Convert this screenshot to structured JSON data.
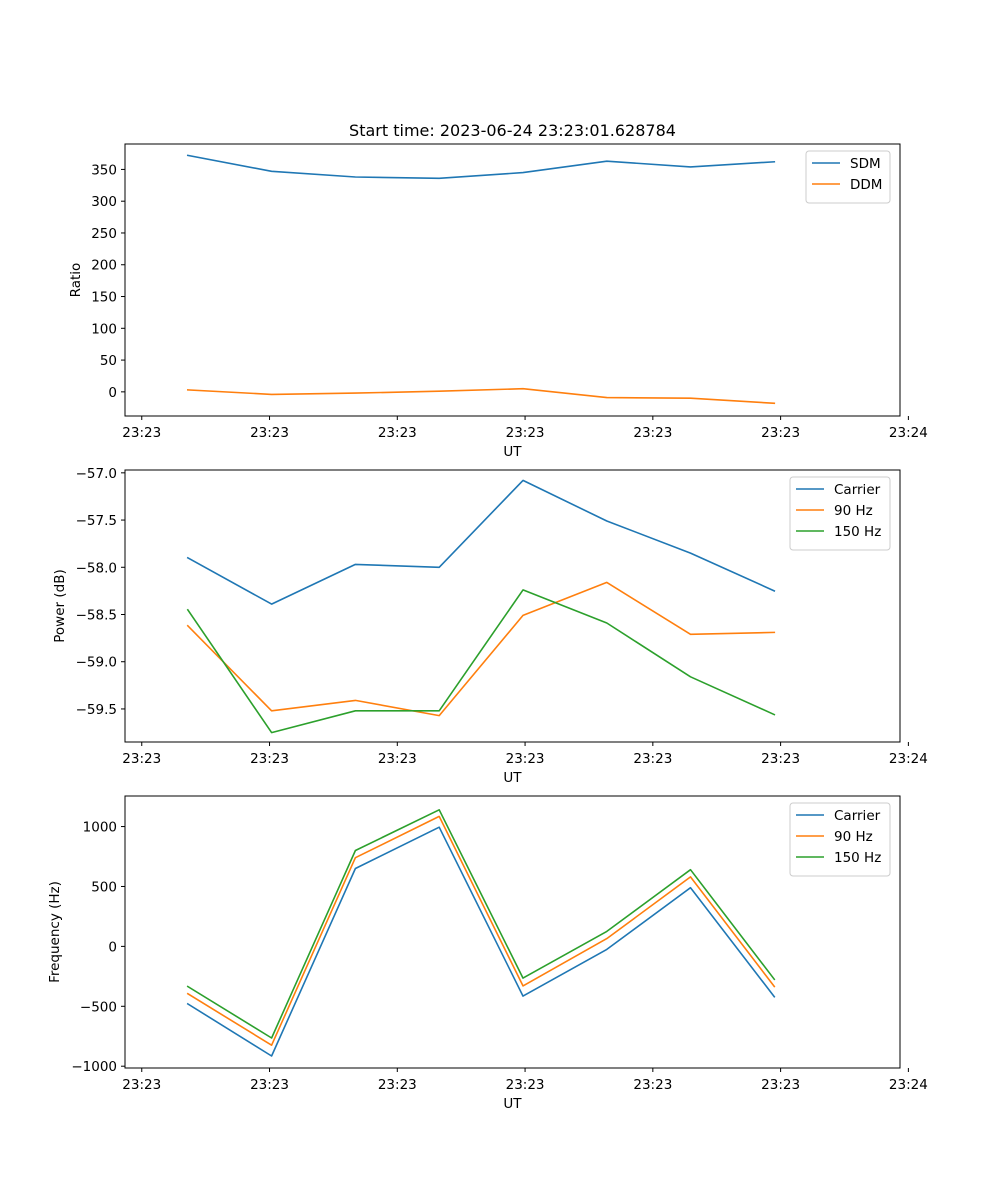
{
  "figure": {
    "title": "Start time: 2023-06-24 23:23:01.628784"
  },
  "chart_data": [
    {
      "type": "line",
      "title": "Start time: 2023-06-24 23:23:01.628784",
      "xlabel": "UT",
      "ylabel": "Ratio",
      "x": [
        1,
        2,
        3,
        4,
        5,
        6,
        7,
        8
      ],
      "xlim": [
        0.25,
        9.5
      ],
      "xticks": [
        0.45,
        1.975,
        3.5,
        5.025,
        6.55,
        8.075,
        9.6
      ],
      "xtick_labels": [
        "23:23",
        "23:23",
        "23:23",
        "23:23",
        "23:23",
        "23:23",
        "23:24"
      ],
      "ylim": [
        -38,
        390
      ],
      "yticks": [
        0,
        50,
        100,
        150,
        200,
        250,
        300,
        350
      ],
      "ytick_labels": [
        "0",
        "50",
        "100",
        "150",
        "200",
        "250",
        "300",
        "350"
      ],
      "legend_position": "top-right",
      "series": [
        {
          "name": "SDM",
          "color": "#1f77b4",
          "values": [
            372,
            347,
            338,
            336,
            345,
            363,
            354,
            362
          ]
        },
        {
          "name": "DDM",
          "color": "#ff7f0e",
          "values": [
            3,
            -4,
            -2,
            1,
            5,
            -9,
            -10,
            -18
          ]
        }
      ]
    },
    {
      "type": "line",
      "title": "",
      "xlabel": "UT",
      "ylabel": "Power (dB)",
      "x": [
        1,
        2,
        3,
        4,
        5,
        6,
        7,
        8
      ],
      "xlim": [
        0.25,
        9.5
      ],
      "xticks": [
        0.45,
        1.975,
        3.5,
        5.025,
        6.55,
        8.075,
        9.6
      ],
      "xtick_labels": [
        "23:23",
        "23:23",
        "23:23",
        "23:23",
        "23:23",
        "23:23",
        "23:24"
      ],
      "ylim": [
        -59.85,
        -56.97
      ],
      "yticks": [
        -59.5,
        -59.0,
        -58.5,
        -58.0,
        -57.5,
        -57.0
      ],
      "ytick_labels": [
        "−59.5",
        "−59.0",
        "−58.5",
        "−58.0",
        "−57.5",
        "−57.0"
      ],
      "legend_position": "top-right",
      "series": [
        {
          "name": "Carrier",
          "color": "#1f77b4",
          "values": [
            -57.9,
            -58.39,
            -57.97,
            -58.0,
            -57.08,
            -57.51,
            -57.85,
            -58.25
          ]
        },
        {
          "name": "90 Hz",
          "color": "#ff7f0e",
          "values": [
            -58.62,
            -59.52,
            -59.41,
            -59.57,
            -58.51,
            -58.16,
            -58.71,
            -58.69
          ]
        },
        {
          "name": "150 Hz",
          "color": "#2ca02c",
          "values": [
            -58.45,
            -59.75,
            -59.52,
            -59.52,
            -58.24,
            -58.59,
            -59.16,
            -59.56
          ]
        }
      ]
    },
    {
      "type": "line",
      "title": "",
      "xlabel": "UT",
      "ylabel": "Frequency (Hz)",
      "x": [
        1,
        2,
        3,
        4,
        5,
        6,
        7,
        8
      ],
      "xlim": [
        0.25,
        9.5
      ],
      "xticks": [
        0.45,
        1.975,
        3.5,
        5.025,
        6.55,
        8.075,
        9.6
      ],
      "xtick_labels": [
        "23:23",
        "23:23",
        "23:23",
        "23:23",
        "23:23",
        "23:23",
        "23:24"
      ],
      "ylim": [
        -1015,
        1255
      ],
      "yticks": [
        -1000,
        -500,
        0,
        500,
        1000
      ],
      "ytick_labels": [
        "−1000",
        "−500",
        "0",
        "500",
        "1000"
      ],
      "legend_position": "top-right",
      "series": [
        {
          "name": "Carrier",
          "color": "#1f77b4",
          "values": [
            -480,
            -915,
            650,
            995,
            -415,
            -25,
            490,
            -420
          ]
        },
        {
          "name": "90 Hz",
          "color": "#ff7f0e",
          "values": [
            -395,
            -825,
            740,
            1085,
            -330,
            65,
            580,
            -335
          ]
        },
        {
          "name": "150 Hz",
          "color": "#2ca02c",
          "values": [
            -335,
            -765,
            800,
            1140,
            -265,
            125,
            640,
            -275
          ]
        }
      ]
    }
  ]
}
